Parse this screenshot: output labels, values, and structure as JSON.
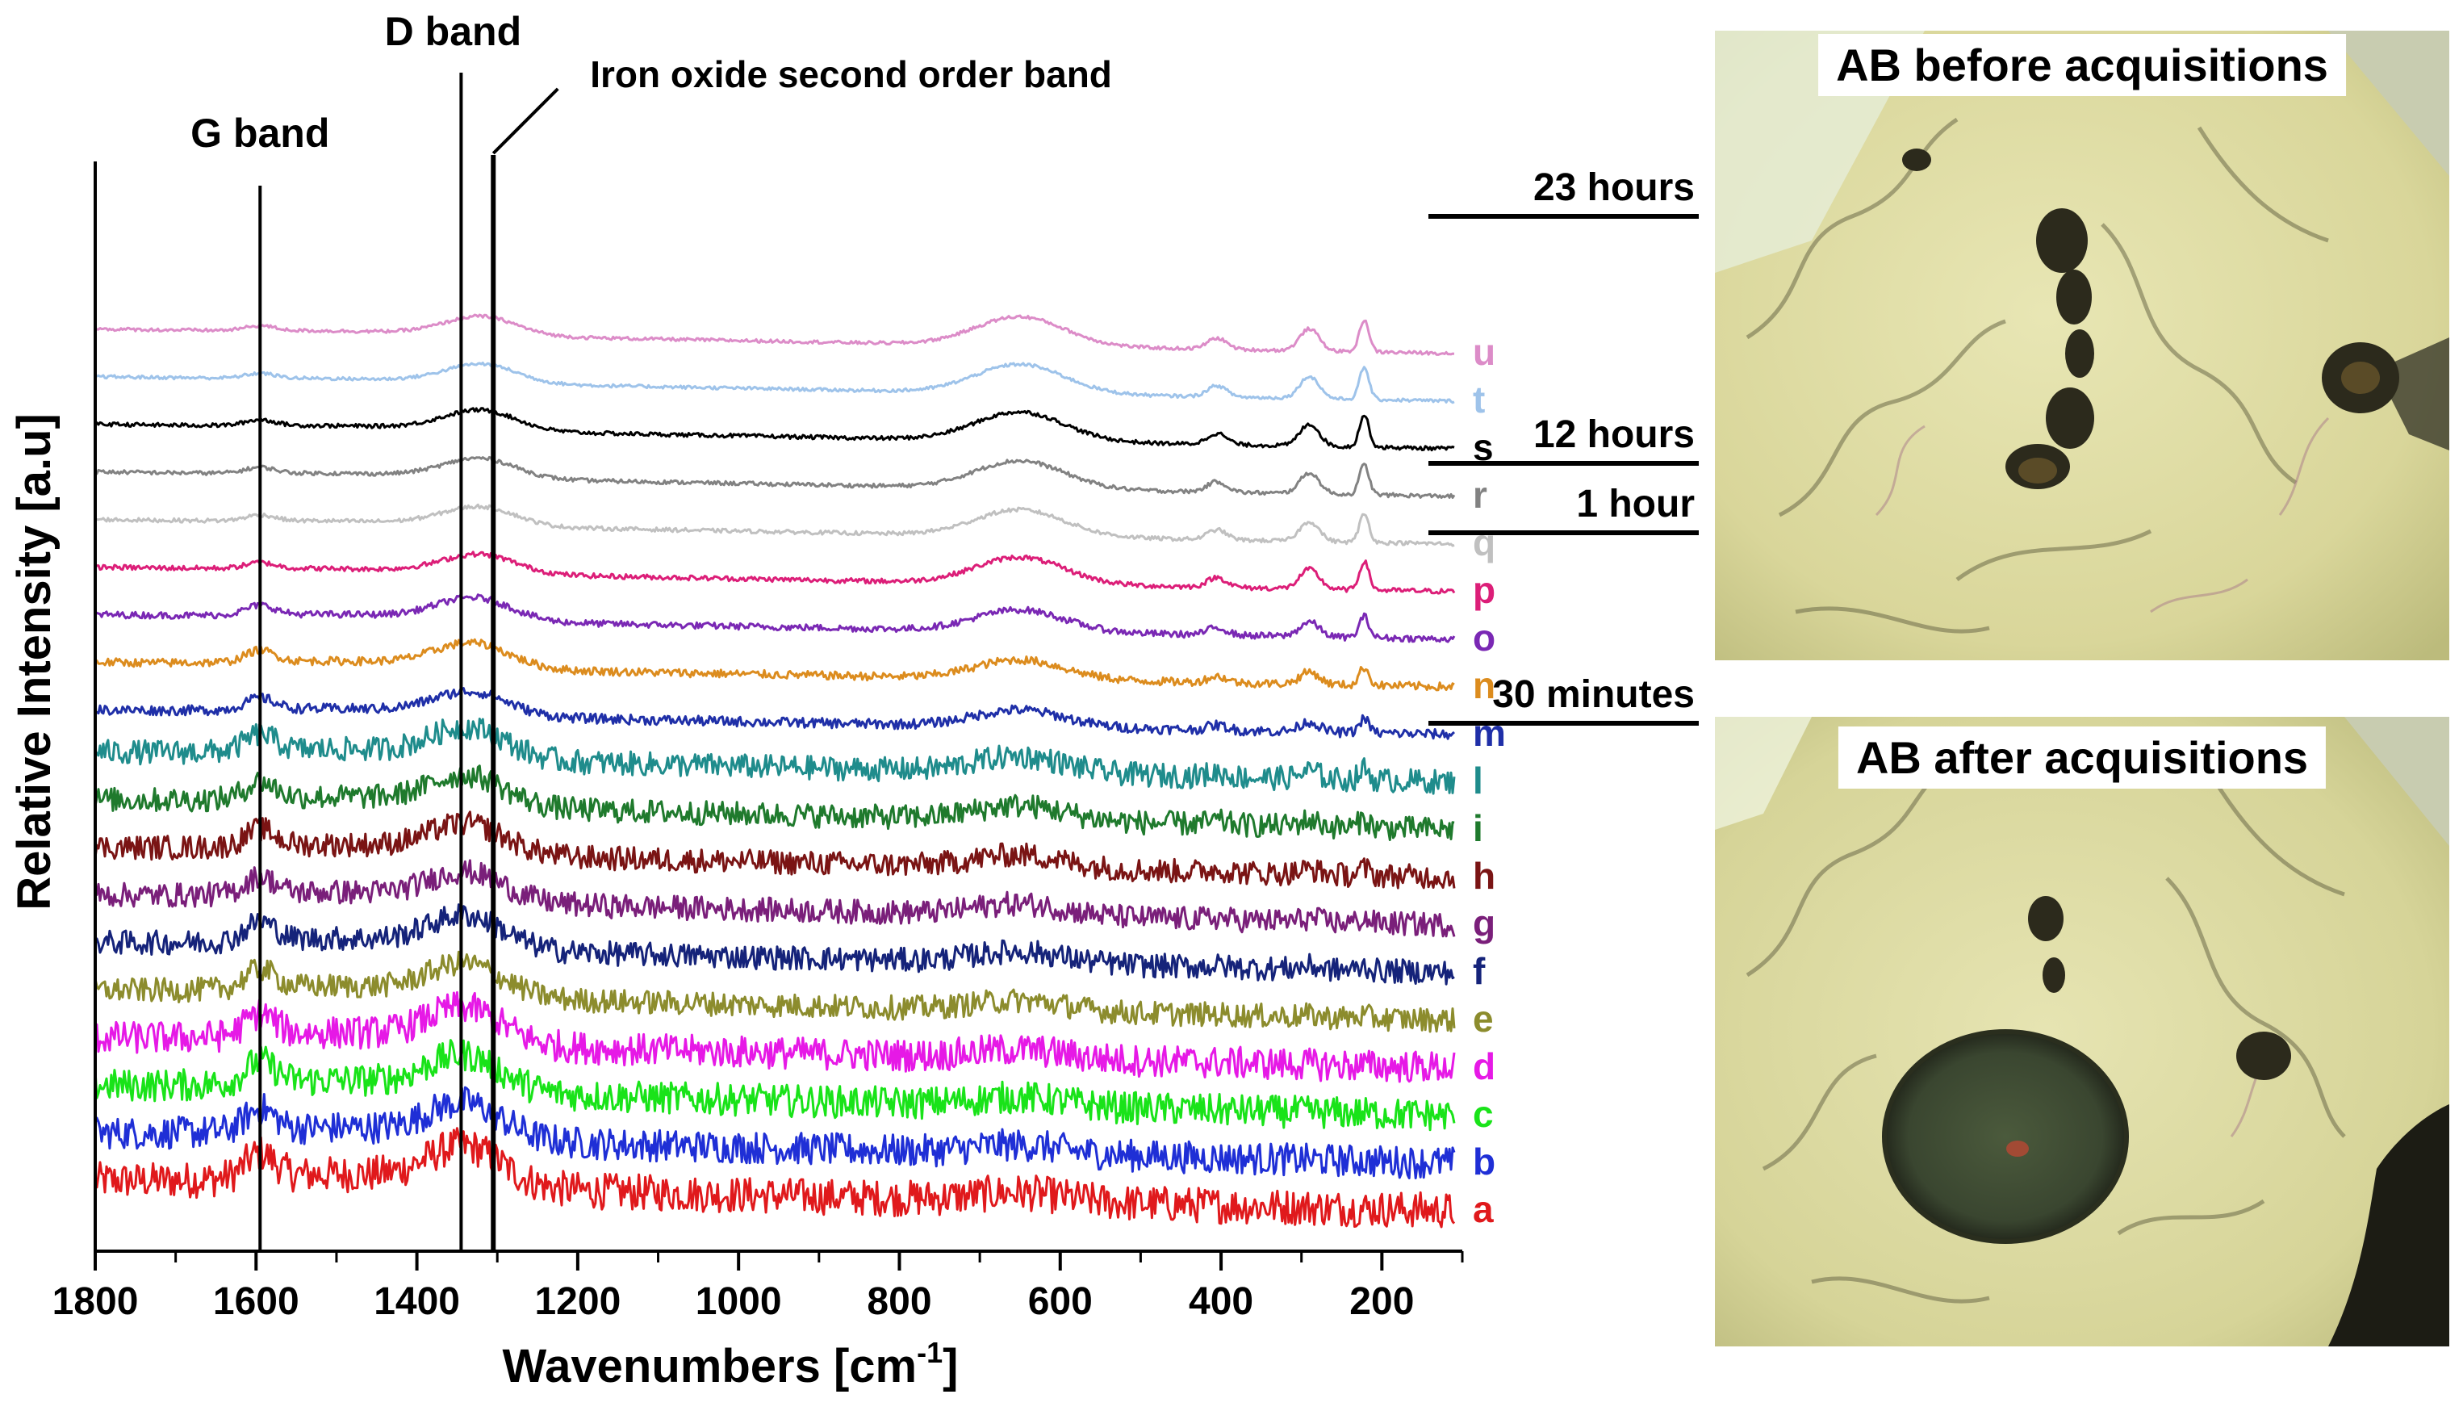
{
  "chart_data": {
    "type": "line",
    "xlabel": "Wavenumbers [cm",
    "xlabel_sup": "-1",
    "xlabel_end": "]",
    "ylabel": "Relative Intensity [a.u]",
    "xlim": [
      1800,
      100
    ],
    "x_ticks": [
      1800,
      1600,
      1400,
      1200,
      1000,
      800,
      600,
      400,
      200
    ],
    "x_tick_labels": [
      "1800",
      "1600",
      "1400",
      "1200",
      "1000",
      "800",
      "600",
      "400",
      "200"
    ],
    "grid": false,
    "legend": "letters at right end of each trace",
    "band_lines": [
      {
        "name": "G band",
        "x": 1595
      },
      {
        "name": "D band",
        "x": 1345
      },
      {
        "name": "Iron oxide second order band",
        "x": 1305
      }
    ],
    "annotations": [
      "G band",
      "D band",
      "Iron oxide second order band"
    ],
    "time_markers": [
      {
        "label": "23 hours"
      },
      {
        "label": "12 hours"
      },
      {
        "label": "1 hour"
      },
      {
        "label": "30 minutes"
      }
    ],
    "series": [
      {
        "name": "a",
        "color": "#e0191c",
        "offset": 0,
        "noise": 0.9,
        "carbon": 1.0,
        "iron": 0.0
      },
      {
        "name": "b",
        "color": "#1f2fd6",
        "offset": 1,
        "noise": 0.8,
        "carbon": 0.9,
        "iron": 0.0
      },
      {
        "name": "c",
        "color": "#19e319",
        "offset": 2,
        "noise": 0.8,
        "carbon": 0.9,
        "iron": 0.0
      },
      {
        "name": "d",
        "color": "#e619e6",
        "offset": 3,
        "noise": 0.8,
        "carbon": 0.9,
        "iron": 0.0
      },
      {
        "name": "e",
        "color": "#8c8c2d",
        "offset": 4,
        "noise": 0.6,
        "carbon": 0.8,
        "iron": 0.05
      },
      {
        "name": "f",
        "color": "#15237a",
        "offset": 5,
        "noise": 0.6,
        "carbon": 0.8,
        "iron": 0.1
      },
      {
        "name": "g",
        "color": "#7a1f7a",
        "offset": 6,
        "noise": 0.6,
        "carbon": 0.7,
        "iron": 0.1
      },
      {
        "name": "h",
        "color": "#7a1414",
        "offset": 7,
        "noise": 0.6,
        "carbon": 0.7,
        "iron": 0.15
      },
      {
        "name": "i",
        "color": "#1f7a2d",
        "offset": 8,
        "noise": 0.6,
        "carbon": 0.7,
        "iron": 0.2
      },
      {
        "name": "l",
        "color": "#1f8c8c",
        "offset": 9,
        "noise": 0.6,
        "carbon": 0.7,
        "iron": 0.25
      },
      {
        "name": "m",
        "color": "#1f2fa8",
        "offset": 10,
        "noise": 0.3,
        "carbon": 0.6,
        "iron": 0.4
      },
      {
        "name": "n",
        "color": "#dc8c1e",
        "offset": 11,
        "noise": 0.25,
        "carbon": 0.6,
        "iron": 0.5
      },
      {
        "name": "o",
        "color": "#7a28b4",
        "offset": 12,
        "noise": 0.2,
        "carbon": 0.5,
        "iron": 0.6
      },
      {
        "name": "p",
        "color": "#dc1e78",
        "offset": 13,
        "noise": 0.15,
        "carbon": 0.3,
        "iron": 0.8
      },
      {
        "name": "q",
        "color": "#c0c0c0",
        "offset": 14,
        "noise": 0.12,
        "carbon": 0.3,
        "iron": 0.8
      },
      {
        "name": "r",
        "color": "#828282",
        "offset": 15,
        "noise": 0.12,
        "carbon": 0.3,
        "iron": 0.85
      },
      {
        "name": "s",
        "color": "#000000",
        "offset": 16,
        "noise": 0.12,
        "carbon": 0.3,
        "iron": 0.9
      },
      {
        "name": "t",
        "color": "#9ec3ea",
        "offset": 17,
        "noise": 0.1,
        "carbon": 0.25,
        "iron": 0.9
      },
      {
        "name": "u",
        "color": "#dc8cc8",
        "offset": 18,
        "noise": 0.1,
        "carbon": 0.25,
        "iron": 0.9
      }
    ]
  },
  "photos": {
    "before": {
      "label": "AB before acquisitions"
    },
    "after": {
      "label": "AB after acquisitions"
    }
  }
}
